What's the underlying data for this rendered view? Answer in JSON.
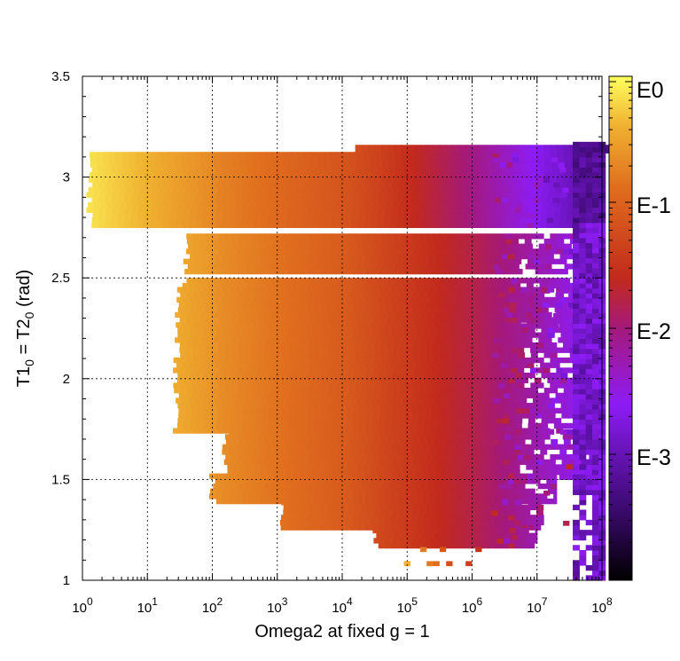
{
  "chart_data": {
    "type": "heatmap",
    "title": "",
    "xlabel": "Omega2 at fixed g = 1",
    "ylabel_main": "T1",
    "ylabel_sub1": "0",
    "ylabel_mid": " = T2",
    "ylabel_sub2": "0",
    "ylabel_end": " (rad)",
    "xscale": "log",
    "xlim": [
      1,
      100000000
    ],
    "ylim": [
      1,
      3.5
    ],
    "grid": true,
    "x_ticks": [
      {
        "base": "10",
        "exp": "0"
      },
      {
        "base": "10",
        "exp": "1"
      },
      {
        "base": "10",
        "exp": "2"
      },
      {
        "base": "10",
        "exp": "3"
      },
      {
        "base": "10",
        "exp": "4"
      },
      {
        "base": "10",
        "exp": "5"
      },
      {
        "base": "10",
        "exp": "6"
      },
      {
        "base": "10",
        "exp": "7"
      },
      {
        "base": "10",
        "exp": "8"
      }
    ],
    "y_ticks": [
      "1",
      "1.5",
      "2",
      "2.5",
      "3",
      "3.5"
    ],
    "colorbar": {
      "labels": [
        "E0",
        "E-1",
        "E-2",
        "E-3"
      ],
      "scale": "log",
      "palette": [
        "#000000",
        "#3a0d6e",
        "#8d1cf5",
        "#c02020",
        "#e8741e",
        "#f6c233",
        "#ffff60"
      ]
    },
    "bands": [
      {
        "y0": 2.75,
        "y1": 3.12,
        "x_start_log": 0.12,
        "x_end_log": 7.95,
        "note": "top band"
      },
      {
        "y0": 2.52,
        "y1": 2.72,
        "x_start_log": 1.6,
        "x_end_log": 7.95
      },
      {
        "y0": 2.25,
        "y1": 2.5,
        "x_start_log": 1.55,
        "x_end_log": 7.95
      },
      {
        "y0": 1.73,
        "y1": 2.45,
        "x_start_log": 1.45,
        "x_end_log": 7.95
      },
      {
        "y0": 1.5,
        "y1": 1.73,
        "x_start_log": 2.2,
        "x_end_log": 7.95
      },
      {
        "y0": 1.38,
        "y1": 1.52,
        "x_start_log": 2.0,
        "x_end_log": 7.3
      },
      {
        "y0": 1.25,
        "y1": 1.38,
        "x_start_log": 3.1,
        "x_end_log": 7.1
      },
      {
        "y0": 1.16,
        "y1": 1.25,
        "x_start_log": 4.5,
        "x_end_log": 7.0
      }
    ],
    "top_strip": {
      "y0": 3.12,
      "y1": 3.16,
      "x_start_log": 4.2,
      "x_end_log": 8.0
    }
  }
}
